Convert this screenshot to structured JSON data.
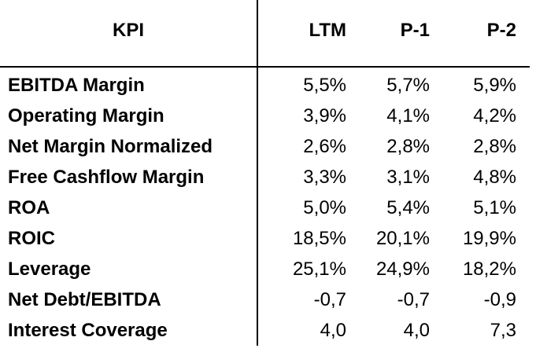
{
  "table": {
    "headers": {
      "kpi": "KPI",
      "ltm": "LTM",
      "p1": "P-1",
      "p2": "P-2"
    },
    "rows": [
      {
        "name": "EBITDA Margin",
        "ltm": "5,5%",
        "p1": "5,7%",
        "p2": "5,9%"
      },
      {
        "name": "Operating Margin",
        "ltm": "3,9%",
        "p1": "4,1%",
        "p2": "4,2%"
      },
      {
        "name": "Net Margin Normalized",
        "ltm": "2,6%",
        "p1": "2,8%",
        "p2": "2,8%"
      },
      {
        "name": "Free Cashflow Margin",
        "ltm": "3,3%",
        "p1": "3,1%",
        "p2": "4,8%"
      },
      {
        "name": "ROA",
        "ltm": "5,0%",
        "p1": "5,4%",
        "p2": "5,1%"
      },
      {
        "name": "ROIC",
        "ltm": "18,5%",
        "p1": "20,1%",
        "p2": "19,9%"
      },
      {
        "name": "Leverage",
        "ltm": "25,1%",
        "p1": "24,9%",
        "p2": "18,2%"
      },
      {
        "name": "Net Debt/EBITDA",
        "ltm": "-0,7",
        "p1": "-0,7",
        "p2": "-0,9"
      },
      {
        "name": "Interest Coverage",
        "ltm": "4,0",
        "p1": "4,0",
        "p2": "7,3"
      }
    ]
  }
}
